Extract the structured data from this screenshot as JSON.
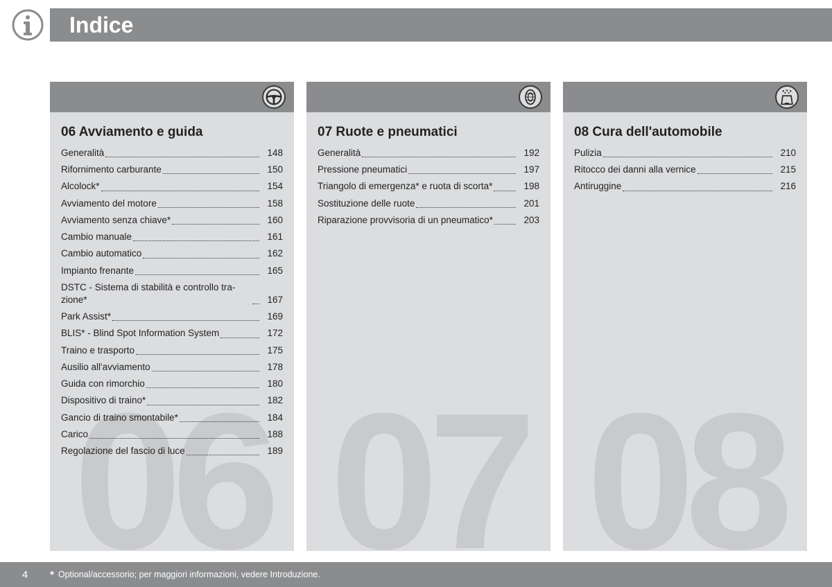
{
  "header": {
    "title": "Indice"
  },
  "footer": {
    "page_number": "4",
    "star": "*",
    "note": "Optional/accessorio; per maggiori informazioni, vedere Introduzione."
  },
  "columns": [
    {
      "watermark": "06",
      "icon": "steering-wheel-icon",
      "heading": "06 Avviamento e guida",
      "entries": [
        {
          "label": "Generalità",
          "page": "148"
        },
        {
          "label": "Rifornimento carburante",
          "page": "150"
        },
        {
          "label": "Alcolock*",
          "page": "154"
        },
        {
          "label": "Avviamento del motore",
          "page": "158"
        },
        {
          "label": "Avviamento senza chiave*",
          "page": "160"
        },
        {
          "label": "Cambio manuale",
          "page": "161"
        },
        {
          "label": "Cambio automatico",
          "page": "162"
        },
        {
          "label": "Impianto frenante",
          "page": "165"
        },
        {
          "label": "DSTC - Sistema di stabilità e controllo tra­zione*",
          "page": "167"
        },
        {
          "label": "Park Assist*",
          "page": "169"
        },
        {
          "label": "BLIS* - Blind Spot Information System",
          "page": "172"
        },
        {
          "label": "Traino e trasporto",
          "page": "175"
        },
        {
          "label": "Ausilio all'avviamento",
          "page": "178"
        },
        {
          "label": "Guida con rimorchio",
          "page": "180"
        },
        {
          "label": "Dispositivo di traino*",
          "page": "182"
        },
        {
          "label": "Gancio di traino smontabile*",
          "page": "184"
        },
        {
          "label": "Carico",
          "page": "188"
        },
        {
          "label": "Regolazione del fascio di luce",
          "page": "189"
        }
      ]
    },
    {
      "watermark": "07",
      "icon": "tire-icon",
      "heading": "07 Ruote e pneumatici",
      "entries": [
        {
          "label": "Generalità",
          "page": "192"
        },
        {
          "label": "Pressione pneumatici",
          "page": "197"
        },
        {
          "label": "Triangolo di emergenza* e ruota di scorta*",
          "page": "198"
        },
        {
          "label": "Sostituzione delle ruote",
          "page": "201"
        },
        {
          "label": "Riparazione provvisoria di un pneuma­tico*",
          "page": "203"
        }
      ]
    },
    {
      "watermark": "08",
      "icon": "carwash-icon",
      "heading": "08 Cura dell'automobile",
      "entries": [
        {
          "label": "Pulizia",
          "page": "210"
        },
        {
          "label": "Ritocco dei danni alla vernice",
          "page": "215"
        },
        {
          "label": "Antiruggine",
          "page": "216"
        }
      ]
    }
  ]
}
